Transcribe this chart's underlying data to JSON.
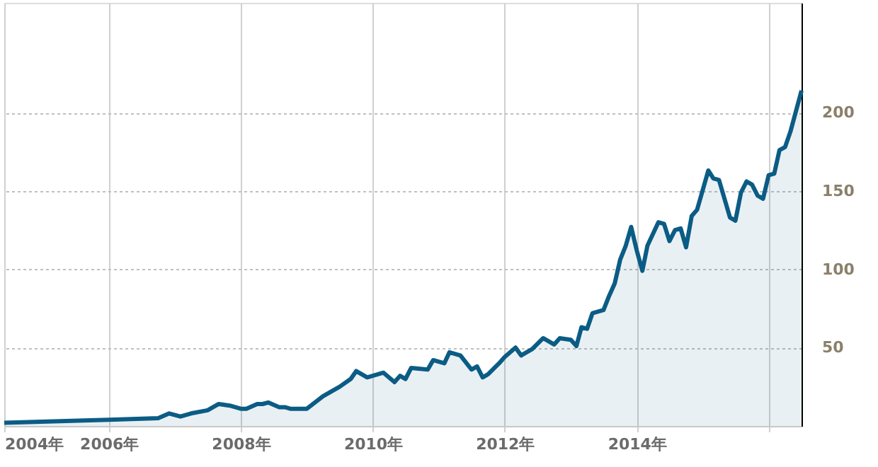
{
  "chart_data": {
    "type": "area",
    "x": [
      "2004-06",
      "2006-01",
      "2006-10",
      "2006-12",
      "2007-02",
      "2007-04",
      "2007-07",
      "2007-09",
      "2007-11",
      "2008-01",
      "2008-02",
      "2008-04",
      "2008-05",
      "2008-06",
      "2008-08",
      "2008-09",
      "2008-10",
      "2009-01",
      "2009-04",
      "2009-07",
      "2009-09",
      "2009-10",
      "2009-12",
      "2010-03",
      "2010-05",
      "2010-06",
      "2010-07",
      "2010-08",
      "2010-11",
      "2010-12",
      "2011-02",
      "2011-03",
      "2011-05",
      "2011-07",
      "2011-08",
      "2011-09",
      "2011-10",
      "2011-12",
      "2012-01",
      "2012-03",
      "2012-04",
      "2012-05",
      "2012-06",
      "2012-08",
      "2012-10",
      "2012-11",
      "2013-01",
      "2013-02",
      "2013-03",
      "2013-04",
      "2013-05",
      "2013-07",
      "2013-08",
      "2013-09",
      "2013-10",
      "2013-11",
      "2013-12",
      "2014-01",
      "2014-02",
      "2014-03",
      "2014-05",
      "2014-06",
      "2014-07",
      "2014-08",
      "2014-09",
      "2014-10",
      "2014-11",
      "2014-12",
      "2015-02",
      "2015-03",
      "2015-04",
      "2015-06",
      "2015-07",
      "2015-08",
      "2015-09",
      "2015-10",
      "2015-11",
      "2015-12",
      "2016-01",
      "2016-02",
      "2016-03",
      "2016-04",
      "2016-05",
      "2016-07"
    ],
    "series": [
      {
        "color": "#0b5c85",
        "values": [
          2,
          4,
          5,
          8,
          6,
          8,
          10,
          14,
          13,
          11,
          11,
          14,
          14,
          15,
          12,
          12,
          11,
          11,
          19,
          25,
          30,
          35,
          31,
          34,
          28,
          32,
          30,
          37,
          36,
          42,
          40,
          47,
          45,
          36,
          38,
          31,
          33,
          40,
          44,
          50,
          45,
          47,
          49,
          56,
          52,
          56,
          55,
          51,
          63,
          62,
          72,
          74,
          83,
          91,
          106,
          115,
          127,
          112,
          99,
          115,
          130,
          129,
          118,
          125,
          126,
          114,
          134,
          138,
          163,
          158,
          157,
          133,
          131,
          149,
          156,
          154,
          147,
          145,
          160,
          161,
          176,
          178,
          188,
          214
        ]
      }
    ],
    "xlim": [
      "2004-06",
      "2016-07"
    ],
    "xticks": [
      {
        "value": "2004-06",
        "label": "2004年"
      },
      {
        "value": "2006-01",
        "label": "2006年"
      },
      {
        "value": "2008-01",
        "label": "2008年"
      },
      {
        "value": "2010-01",
        "label": "2010年"
      },
      {
        "value": "2012-01",
        "label": "2012年"
      },
      {
        "value": "2014-01",
        "label": "2014年"
      },
      {
        "value": "2016-01",
        "label": null
      }
    ],
    "ylim": [
      0,
      270
    ],
    "yticks": [
      {
        "value": 0,
        "label": null
      },
      50,
      100,
      150,
      200
    ],
    "grid": true
  }
}
